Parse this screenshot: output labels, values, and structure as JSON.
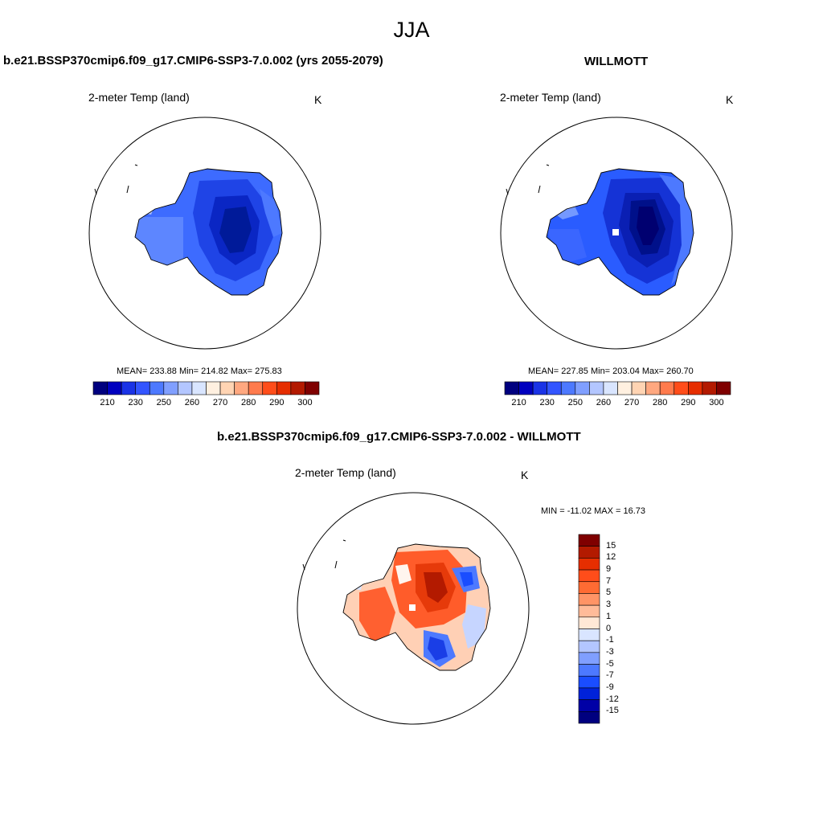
{
  "figure": {
    "title": "JJA"
  },
  "colors": {
    "horizontal_bar": [
      "#00007f",
      "#0000bf",
      "#1a33e6",
      "#3355ff",
      "#4d79ff",
      "#809fff",
      "#b3c6ff",
      "#d9e5ff",
      "#fff0e0",
      "#ffd4b3",
      "#ffa880",
      "#ff7b4d",
      "#ff4d1a",
      "#e62e00",
      "#b31a00",
      "#7f0000"
    ],
    "vertical_bar": [
      "#7f0000",
      "#b31a00",
      "#e62e00",
      "#ff4d1a",
      "#ff6b33",
      "#ff9466",
      "#ffbb99",
      "#ffe8d6",
      "#d9e5ff",
      "#b3c6ff",
      "#809fff",
      "#4d79ff",
      "#1a4dff",
      "#0022d9",
      "#0000a6",
      "#00007f"
    ]
  },
  "panels": [
    {
      "id": "model",
      "title": "b.e21.BSSP370cmip6.f09_g17.CMIP6-SSP3-7.0.002 (yrs 2055-2079)",
      "variable": "2-meter Temp (land)",
      "units": "K",
      "stats": "MEAN= 233.88  Min= 214.82  Max= 275.83",
      "ticks": [
        "210",
        "230",
        "250",
        "260",
        "270",
        "280",
        "290",
        "300"
      ]
    },
    {
      "id": "obs",
      "title": "WILLMOTT",
      "variable": "2-meter Temp (land)",
      "units": "K",
      "stats": "MEAN= 227.85  Min= 203.04  Max= 260.70",
      "ticks": [
        "210",
        "230",
        "250",
        "260",
        "270",
        "280",
        "290",
        "300"
      ]
    },
    {
      "id": "diff",
      "title": "b.e21.BSSP370cmip6.f09_g17.CMIP6-SSP3-7.0.002 - WILLMOTT",
      "variable": "2-meter Temp (land)",
      "units": "K",
      "stats": "MIN = -11.02 MAX =  16.73",
      "ticks": [
        "15",
        "12",
        "9",
        "7",
        "5",
        "3",
        "1",
        "0",
        "-1",
        "-3",
        "-5",
        "-7",
        "-9",
        "-12",
        "-15"
      ]
    }
  ]
}
